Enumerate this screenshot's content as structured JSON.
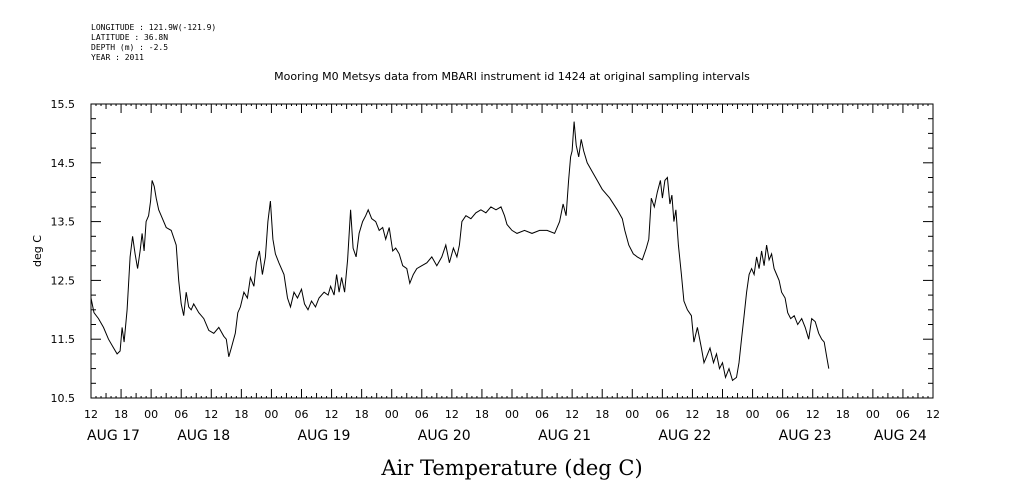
{
  "header_info": [
    "LONGITUDE : 121.9W(-121.9)",
    "LATITUDE : 36.8N",
    "DEPTH (m) : -2.5",
    "YEAR : 2011"
  ],
  "chart_data": {
    "type": "line",
    "title": "Mooring M0 Metsys data from MBARI instrument id 1424 at original sampling intervals",
    "xlabel": "Air Temperature (deg C)",
    "ylabel": "deg C",
    "ylim": [
      10.5,
      15.5
    ],
    "y_ticks": [
      "15.5",
      "14.5",
      "13.5",
      "12.5",
      "11.5",
      "10.5"
    ],
    "y_tick_values": [
      15.5,
      14.5,
      13.5,
      12.5,
      11.5,
      10.5
    ],
    "x_range_hours": [
      0,
      168
    ],
    "x_hour_ticks": [
      {
        "h": 0,
        "label": "12"
      },
      {
        "h": 6,
        "label": "18"
      },
      {
        "h": 12,
        "label": "00"
      },
      {
        "h": 18,
        "label": "06"
      },
      {
        "h": 24,
        "label": "12"
      },
      {
        "h": 30,
        "label": "18"
      },
      {
        "h": 36,
        "label": "00"
      },
      {
        "h": 42,
        "label": "06"
      },
      {
        "h": 48,
        "label": "12"
      },
      {
        "h": 54,
        "label": "18"
      },
      {
        "h": 60,
        "label": "00"
      },
      {
        "h": 66,
        "label": "06"
      },
      {
        "h": 72,
        "label": "12"
      },
      {
        "h": 78,
        "label": "18"
      },
      {
        "h": 84,
        "label": "00"
      },
      {
        "h": 90,
        "label": "06"
      },
      {
        "h": 96,
        "label": "12"
      },
      {
        "h": 102,
        "label": "18"
      },
      {
        "h": 108,
        "label": "00"
      },
      {
        "h": 114,
        "label": "06"
      },
      {
        "h": 120,
        "label": "12"
      },
      {
        "h": 126,
        "label": "18"
      },
      {
        "h": 132,
        "label": "00"
      },
      {
        "h": 138,
        "label": "06"
      },
      {
        "h": 144,
        "label": "12"
      },
      {
        "h": 150,
        "label": "18"
      },
      {
        "h": 156,
        "label": "00"
      },
      {
        "h": 162,
        "label": "06"
      },
      {
        "h": 168,
        "label": "12"
      }
    ],
    "x_day_labels": [
      {
        "h": 0,
        "label": "AUG 17"
      },
      {
        "h": 18,
        "label": "AUG 18"
      },
      {
        "h": 42,
        "label": "AUG 19"
      },
      {
        "h": 66,
        "label": "AUG 20"
      },
      {
        "h": 90,
        "label": "AUG 21"
      },
      {
        "h": 114,
        "label": "AUG 22"
      },
      {
        "h": 138,
        "label": "AUG 23"
      },
      {
        "h": 157,
        "label": "AUG 24"
      }
    ],
    "series": [
      {
        "color": "#000000",
        "points": [
          [
            0,
            12.2
          ],
          [
            0.6,
            11.95
          ],
          [
            1.5,
            11.85
          ],
          [
            2.5,
            11.7
          ],
          [
            3.5,
            11.5
          ],
          [
            4.5,
            11.35
          ],
          [
            5.2,
            11.25
          ],
          [
            5.8,
            11.3
          ],
          [
            6.2,
            11.7
          ],
          [
            6.6,
            11.45
          ],
          [
            7.2,
            12.0
          ],
          [
            7.8,
            12.9
          ],
          [
            8.3,
            13.25
          ],
          [
            8.8,
            12.95
          ],
          [
            9.3,
            12.7
          ],
          [
            9.8,
            13.0
          ],
          [
            10.2,
            13.3
          ],
          [
            10.6,
            13.0
          ],
          [
            11.0,
            13.5
          ],
          [
            11.5,
            13.6
          ],
          [
            11.9,
            13.85
          ],
          [
            12.2,
            14.2
          ],
          [
            12.6,
            14.1
          ],
          [
            13.0,
            13.9
          ],
          [
            13.5,
            13.7
          ],
          [
            14.0,
            13.6
          ],
          [
            15.0,
            13.4
          ],
          [
            16.0,
            13.35
          ],
          [
            17.0,
            13.1
          ],
          [
            17.5,
            12.5
          ],
          [
            18.0,
            12.1
          ],
          [
            18.5,
            11.9
          ],
          [
            19.0,
            12.3
          ],
          [
            19.5,
            12.05
          ],
          [
            20.0,
            12.0
          ],
          [
            20.5,
            12.1
          ],
          [
            21.5,
            11.95
          ],
          [
            22.5,
            11.85
          ],
          [
            23.5,
            11.65
          ],
          [
            24.5,
            11.6
          ],
          [
            25.5,
            11.7
          ],
          [
            26.5,
            11.55
          ],
          [
            27.0,
            11.5
          ],
          [
            27.5,
            11.2
          ],
          [
            28.0,
            11.35
          ],
          [
            28.8,
            11.6
          ],
          [
            29.3,
            11.95
          ],
          [
            29.8,
            12.05
          ],
          [
            30.5,
            12.3
          ],
          [
            31.2,
            12.2
          ],
          [
            31.8,
            12.55
          ],
          [
            32.5,
            12.4
          ],
          [
            33.0,
            12.8
          ],
          [
            33.6,
            13.0
          ],
          [
            34.2,
            12.6
          ],
          [
            34.8,
            12.9
          ],
          [
            35.3,
            13.5
          ],
          [
            35.8,
            13.85
          ],
          [
            36.3,
            13.2
          ],
          [
            36.8,
            12.95
          ],
          [
            37.5,
            12.8
          ],
          [
            38.5,
            12.6
          ],
          [
            39.2,
            12.2
          ],
          [
            39.8,
            12.05
          ],
          [
            40.5,
            12.3
          ],
          [
            41.2,
            12.2
          ],
          [
            42.0,
            12.35
          ],
          [
            42.6,
            12.1
          ],
          [
            43.3,
            12.0
          ],
          [
            44.0,
            12.15
          ],
          [
            44.8,
            12.05
          ],
          [
            45.5,
            12.2
          ],
          [
            46.5,
            12.3
          ],
          [
            47.3,
            12.25
          ],
          [
            47.8,
            12.4
          ],
          [
            48.5,
            12.25
          ],
          [
            49.0,
            12.6
          ],
          [
            49.5,
            12.3
          ],
          [
            50.0,
            12.55
          ],
          [
            50.6,
            12.3
          ],
          [
            51.2,
            12.85
          ],
          [
            51.8,
            13.7
          ],
          [
            52.3,
            13.05
          ],
          [
            52.9,
            12.9
          ],
          [
            53.5,
            13.3
          ],
          [
            54.2,
            13.5
          ],
          [
            54.8,
            13.6
          ],
          [
            55.3,
            13.7
          ],
          [
            56.0,
            13.55
          ],
          [
            56.8,
            13.5
          ],
          [
            57.5,
            13.35
          ],
          [
            58.2,
            13.4
          ],
          [
            58.8,
            13.2
          ],
          [
            59.5,
            13.4
          ],
          [
            60.2,
            13.0
          ],
          [
            60.8,
            13.05
          ],
          [
            61.5,
            12.95
          ],
          [
            62.2,
            12.75
          ],
          [
            63.0,
            12.7
          ],
          [
            63.6,
            12.45
          ],
          [
            64.3,
            12.6
          ],
          [
            65.0,
            12.7
          ],
          [
            66.0,
            12.75
          ],
          [
            67.0,
            12.8
          ],
          [
            68.0,
            12.9
          ],
          [
            69.0,
            12.75
          ],
          [
            70.0,
            12.9
          ],
          [
            70.8,
            13.1
          ],
          [
            71.5,
            12.8
          ],
          [
            72.3,
            13.05
          ],
          [
            73.0,
            12.9
          ],
          [
            73.5,
            13.1
          ],
          [
            74.0,
            13.5
          ],
          [
            74.8,
            13.6
          ],
          [
            75.8,
            13.55
          ],
          [
            76.8,
            13.65
          ],
          [
            77.8,
            13.7
          ],
          [
            78.8,
            13.65
          ],
          [
            79.8,
            13.75
          ],
          [
            80.8,
            13.7
          ],
          [
            81.8,
            13.75
          ],
          [
            82.5,
            13.6
          ],
          [
            83.0,
            13.45
          ],
          [
            84.0,
            13.35
          ],
          [
            85.0,
            13.3
          ],
          [
            86.5,
            13.35
          ],
          [
            88.0,
            13.3
          ],
          [
            89.5,
            13.35
          ],
          [
            91.0,
            13.35
          ],
          [
            92.5,
            13.3
          ],
          [
            93.5,
            13.5
          ],
          [
            94.2,
            13.8
          ],
          [
            94.8,
            13.6
          ],
          [
            95.3,
            14.2
          ],
          [
            95.7,
            14.6
          ],
          [
            96.0,
            14.7
          ],
          [
            96.4,
            15.2
          ],
          [
            96.8,
            14.8
          ],
          [
            97.3,
            14.6
          ],
          [
            97.8,
            14.9
          ],
          [
            98.3,
            14.7
          ],
          [
            99.0,
            14.5
          ],
          [
            100.0,
            14.35
          ],
          [
            101.0,
            14.2
          ],
          [
            102.0,
            14.05
          ],
          [
            103.5,
            13.9
          ],
          [
            105.0,
            13.7
          ],
          [
            106.0,
            13.55
          ],
          [
            106.5,
            13.35
          ],
          [
            107.3,
            13.1
          ],
          [
            108.2,
            12.95
          ],
          [
            109.0,
            12.9
          ],
          [
            110.0,
            12.85
          ],
          [
            110.8,
            13.05
          ],
          [
            111.3,
            13.2
          ],
          [
            111.8,
            13.9
          ],
          [
            112.4,
            13.75
          ],
          [
            113.0,
            14.0
          ],
          [
            113.6,
            14.2
          ],
          [
            114.0,
            13.9
          ],
          [
            114.5,
            14.2
          ],
          [
            115.0,
            14.25
          ],
          [
            115.5,
            13.8
          ],
          [
            115.9,
            13.95
          ],
          [
            116.3,
            13.5
          ],
          [
            116.7,
            13.7
          ],
          [
            117.2,
            13.1
          ],
          [
            117.8,
            12.6
          ],
          [
            118.3,
            12.15
          ],
          [
            119.0,
            12.0
          ],
          [
            119.8,
            11.9
          ],
          [
            120.3,
            11.45
          ],
          [
            121.0,
            11.7
          ],
          [
            121.8,
            11.35
          ],
          [
            122.3,
            11.1
          ],
          [
            122.8,
            11.2
          ],
          [
            123.5,
            11.35
          ],
          [
            124.2,
            11.1
          ],
          [
            124.8,
            11.25
          ],
          [
            125.4,
            11.0
          ],
          [
            126.0,
            11.1
          ],
          [
            126.6,
            10.85
          ],
          [
            127.3,
            11.0
          ],
          [
            128.0,
            10.8
          ],
          [
            128.8,
            10.85
          ],
          [
            129.3,
            11.1
          ],
          [
            129.8,
            11.5
          ],
          [
            130.3,
            11.9
          ],
          [
            130.8,
            12.3
          ],
          [
            131.3,
            12.6
          ],
          [
            131.8,
            12.7
          ],
          [
            132.3,
            12.6
          ],
          [
            132.8,
            12.9
          ],
          [
            133.3,
            12.7
          ],
          [
            133.8,
            13.0
          ],
          [
            134.3,
            12.75
          ],
          [
            134.8,
            13.1
          ],
          [
            135.3,
            12.85
          ],
          [
            135.8,
            12.95
          ],
          [
            136.3,
            12.7
          ],
          [
            136.8,
            12.6
          ],
          [
            137.3,
            12.5
          ],
          [
            137.8,
            12.3
          ],
          [
            138.5,
            12.2
          ],
          [
            139.0,
            11.95
          ],
          [
            139.6,
            11.85
          ],
          [
            140.3,
            11.9
          ],
          [
            141.0,
            11.75
          ],
          [
            141.8,
            11.85
          ],
          [
            142.5,
            11.7
          ],
          [
            143.2,
            11.5
          ],
          [
            143.8,
            11.85
          ],
          [
            144.5,
            11.8
          ],
          [
            145.2,
            11.6
          ],
          [
            145.8,
            11.5
          ],
          [
            146.3,
            11.45
          ],
          [
            146.8,
            11.2
          ],
          [
            147.2,
            11.0
          ]
        ]
      }
    ]
  }
}
